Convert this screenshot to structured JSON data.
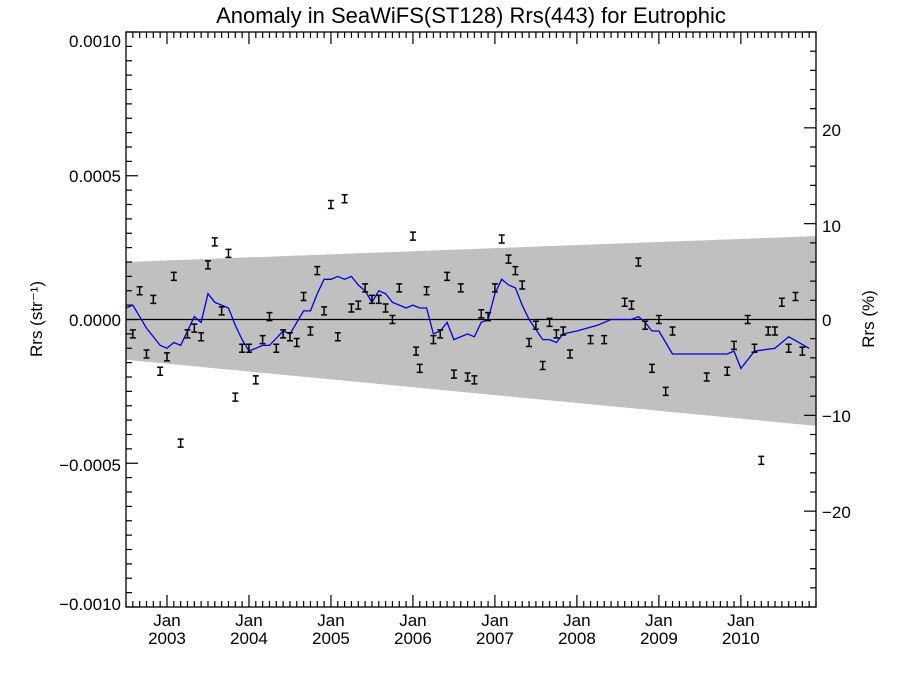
{
  "chart_data": {
    "type": "scatter",
    "title": "Anomaly in SeaWiFS(ST128) Rrs(443) for Eutrophic",
    "ylabel_left": "Rrs (str⁻¹)",
    "ylabel_right": "Rrs (%)",
    "xlabel": "",
    "xlim": [
      "2002-07-01",
      "2010-12-01"
    ],
    "ylim_left": [
      -0.001,
      0.001
    ],
    "ylim_right": [
      -30,
      30
    ],
    "left_ticks": [
      "0.0010",
      "0.0005",
      "0.0000",
      "−0.0005",
      "−0.0010"
    ],
    "right_ticks": [
      "20",
      "10",
      "0",
      "−10",
      "−20"
    ],
    "x_ticks": [
      {
        "month": "Jan",
        "year": "2003"
      },
      {
        "month": "Jan",
        "year": "2004"
      },
      {
        "month": "Jan",
        "year": "2005"
      },
      {
        "month": "Jan",
        "year": "2006"
      },
      {
        "month": "Jan",
        "year": "2007"
      },
      {
        "month": "Jan",
        "year": "2008"
      },
      {
        "month": "Jan",
        "year": "2009"
      },
      {
        "month": "Jan",
        "year": "2010"
      }
    ],
    "colors": {
      "band": "#c0c0c0",
      "line": "#0000dd",
      "points": "#000000",
      "zero_line": "#000000"
    },
    "uncertainty_band": {
      "x": [
        "2002-07-01",
        "2010-12-01"
      ],
      "upper": [
        0.0002,
        0.00029
      ],
      "lower": [
        -0.00014,
        -0.00037
      ]
    },
    "points": [
      {
        "x": "2002-08-01",
        "y": -5e-05
      },
      {
        "x": "2002-09-01",
        "y": 0.0001
      },
      {
        "x": "2002-10-01",
        "y": -0.00012
      },
      {
        "x": "2002-11-01",
        "y": 7e-05
      },
      {
        "x": "2002-12-01",
        "y": -0.00018
      },
      {
        "x": "2003-01-01",
        "y": -0.00013
      },
      {
        "x": "2003-02-01",
        "y": 0.00015
      },
      {
        "x": "2003-03-01",
        "y": -0.00043
      },
      {
        "x": "2003-04-01",
        "y": -5e-05
      },
      {
        "x": "2003-05-01",
        "y": -3e-05
      },
      {
        "x": "2003-06-01",
        "y": -6e-05
      },
      {
        "x": "2003-07-01",
        "y": 0.00019
      },
      {
        "x": "2003-08-01",
        "y": 0.00027
      },
      {
        "x": "2003-09-01",
        "y": 3e-05
      },
      {
        "x": "2003-10-01",
        "y": 0.00023
      },
      {
        "x": "2003-11-01",
        "y": -0.00027
      },
      {
        "x": "2003-12-01",
        "y": -0.0001
      },
      {
        "x": "2004-01-01",
        "y": -0.0001
      },
      {
        "x": "2004-02-01",
        "y": -0.00021
      },
      {
        "x": "2004-03-01",
        "y": -7e-05
      },
      {
        "x": "2004-04-01",
        "y": 1e-05
      },
      {
        "x": "2004-05-01",
        "y": -0.0001
      },
      {
        "x": "2004-06-01",
        "y": -5e-05
      },
      {
        "x": "2004-07-01",
        "y": -6e-05
      },
      {
        "x": "2004-08-01",
        "y": -8e-05
      },
      {
        "x": "2004-09-01",
        "y": 8e-05
      },
      {
        "x": "2004-10-01",
        "y": -4e-05
      },
      {
        "x": "2004-11-01",
        "y": 0.00017
      },
      {
        "x": "2004-12-01",
        "y": 3e-05
      },
      {
        "x": "2005-01-01",
        "y": 0.0004
      },
      {
        "x": "2005-02-01",
        "y": -6e-05
      },
      {
        "x": "2005-03-01",
        "y": 0.00042
      },
      {
        "x": "2005-04-01",
        "y": 4e-05
      },
      {
        "x": "2005-05-01",
        "y": 5e-05
      },
      {
        "x": "2005-06-01",
        "y": 0.00011
      },
      {
        "x": "2005-07-01",
        "y": 7e-05
      },
      {
        "x": "2005-08-01",
        "y": 7e-05
      },
      {
        "x": "2005-09-01",
        "y": 4e-05
      },
      {
        "x": "2005-10-01",
        "y": 0.0
      },
      {
        "x": "2005-11-01",
        "y": 0.00011
      },
      {
        "x": "2006-01-01",
        "y": 0.00029
      },
      {
        "x": "2006-01-15",
        "y": -0.00011
      },
      {
        "x": "2006-02-01",
        "y": -0.00017
      },
      {
        "x": "2006-03-01",
        "y": 0.0001
      },
      {
        "x": "2006-04-01",
        "y": -7e-05
      },
      {
        "x": "2006-05-01",
        "y": -5e-05
      },
      {
        "x": "2006-06-01",
        "y": 0.00015
      },
      {
        "x": "2006-07-01",
        "y": -0.00019
      },
      {
        "x": "2006-08-01",
        "y": 0.00011
      },
      {
        "x": "2006-09-01",
        "y": -0.0002
      },
      {
        "x": "2006-10-01",
        "y": -0.00021
      },
      {
        "x": "2006-11-01",
        "y": 2e-05
      },
      {
        "x": "2006-12-01",
        "y": 1e-05
      },
      {
        "x": "2007-01-01",
        "y": 0.00011
      },
      {
        "x": "2007-02-01",
        "y": 0.00028
      },
      {
        "x": "2007-03-01",
        "y": 0.00021
      },
      {
        "x": "2007-04-01",
        "y": 0.00017
      },
      {
        "x": "2007-05-01",
        "y": 0.00012
      },
      {
        "x": "2007-06-01",
        "y": -8e-05
      },
      {
        "x": "2007-07-01",
        "y": -2e-05
      },
      {
        "x": "2007-08-01",
        "y": -0.00016
      },
      {
        "x": "2007-09-01",
        "y": -1e-05
      },
      {
        "x": "2007-10-01",
        "y": -5e-05
      },
      {
        "x": "2007-11-01",
        "y": -4e-05
      },
      {
        "x": "2007-12-01",
        "y": -0.00012
      },
      {
        "x": "2008-03-01",
        "y": -7e-05
      },
      {
        "x": "2008-05-01",
        "y": -7e-05
      },
      {
        "x": "2008-08-01",
        "y": 6e-05
      },
      {
        "x": "2008-09-01",
        "y": 5e-05
      },
      {
        "x": "2008-10-01",
        "y": 0.0002
      },
      {
        "x": "2008-11-01",
        "y": -2e-05
      },
      {
        "x": "2008-12-01",
        "y": -0.00017
      },
      {
        "x": "2009-01-01",
        "y": 0.0
      },
      {
        "x": "2009-02-01",
        "y": -0.00025
      },
      {
        "x": "2009-03-01",
        "y": -4e-05
      },
      {
        "x": "2009-08-01",
        "y": -0.0002
      },
      {
        "x": "2009-11-01",
        "y": -0.00018
      },
      {
        "x": "2009-12-01",
        "y": -9e-05
      },
      {
        "x": "2010-02-01",
        "y": 0.0
      },
      {
        "x": "2010-03-01",
        "y": -0.0001
      },
      {
        "x": "2010-04-01",
        "y": -0.00049
      },
      {
        "x": "2010-05-01",
        "y": -4e-05
      },
      {
        "x": "2010-06-01",
        "y": -4e-05
      },
      {
        "x": "2010-07-01",
        "y": 6e-05
      },
      {
        "x": "2010-08-01",
        "y": -0.0001
      },
      {
        "x": "2010-09-01",
        "y": 8e-05
      },
      {
        "x": "2010-10-01",
        "y": -0.00011
      }
    ],
    "running_mean": [
      {
        "x": "2002-07-01",
        "y": 4e-05
      },
      {
        "x": "2002-08-01",
        "y": 5e-05
      },
      {
        "x": "2002-10-01",
        "y": -3e-05
      },
      {
        "x": "2002-12-01",
        "y": -9e-05
      },
      {
        "x": "2003-01-01",
        "y": -0.0001
      },
      {
        "x": "2003-02-01",
        "y": -8e-05
      },
      {
        "x": "2003-03-01",
        "y": -9e-05
      },
      {
        "x": "2003-05-01",
        "y": 1e-05
      },
      {
        "x": "2003-06-01",
        "y": -1e-05
      },
      {
        "x": "2003-07-01",
        "y": 9e-05
      },
      {
        "x": "2003-08-01",
        "y": 6e-05
      },
      {
        "x": "2003-10-01",
        "y": 4e-05
      },
      {
        "x": "2003-11-01",
        "y": -2e-05
      },
      {
        "x": "2003-12-01",
        "y": -7e-05
      },
      {
        "x": "2004-01-01",
        "y": -0.00011
      },
      {
        "x": "2004-02-01",
        "y": -0.0001
      },
      {
        "x": "2004-03-01",
        "y": -9e-05
      },
      {
        "x": "2004-04-01",
        "y": -9e-05
      },
      {
        "x": "2004-06-01",
        "y": -4e-05
      },
      {
        "x": "2004-07-01",
        "y": -5e-05
      },
      {
        "x": "2004-09-01",
        "y": 3e-05
      },
      {
        "x": "2004-10-01",
        "y": 3e-05
      },
      {
        "x": "2004-11-01",
        "y": 9e-05
      },
      {
        "x": "2004-12-01",
        "y": 0.00014
      },
      {
        "x": "2005-01-01",
        "y": 0.00014
      },
      {
        "x": "2005-02-01",
        "y": 0.00015
      },
      {
        "x": "2005-03-01",
        "y": 0.00014
      },
      {
        "x": "2005-04-01",
        "y": 0.00015
      },
      {
        "x": "2005-05-01",
        "y": 0.00012
      },
      {
        "x": "2005-06-01",
        "y": 0.0001
      },
      {
        "x": "2005-07-01",
        "y": 6e-05
      },
      {
        "x": "2005-08-01",
        "y": 0.0001
      },
      {
        "x": "2005-09-01",
        "y": 9e-05
      },
      {
        "x": "2005-10-01",
        "y": 6e-05
      },
      {
        "x": "2005-11-01",
        "y": 5e-05
      },
      {
        "x": "2005-12-01",
        "y": 4e-05
      },
      {
        "x": "2006-01-01",
        "y": 5e-05
      },
      {
        "x": "2006-02-01",
        "y": 4e-05
      },
      {
        "x": "2006-03-01",
        "y": 4e-05
      },
      {
        "x": "2006-04-01",
        "y": -5e-05
      },
      {
        "x": "2006-05-01",
        "y": -4e-05
      },
      {
        "x": "2006-06-01",
        "y": -1e-05
      },
      {
        "x": "2006-07-01",
        "y": -7e-05
      },
      {
        "x": "2006-09-01",
        "y": -5e-05
      },
      {
        "x": "2006-10-01",
        "y": -6e-05
      },
      {
        "x": "2006-11-01",
        "y": -1e-05
      },
      {
        "x": "2006-12-01",
        "y": 0.0
      },
      {
        "x": "2007-01-01",
        "y": 9e-05
      },
      {
        "x": "2007-02-01",
        "y": 0.00014
      },
      {
        "x": "2007-03-01",
        "y": 0.00012
      },
      {
        "x": "2007-04-01",
        "y": 0.00011
      },
      {
        "x": "2007-05-01",
        "y": 5e-05
      },
      {
        "x": "2007-06-01",
        "y": 0.0
      },
      {
        "x": "2007-08-01",
        "y": -7e-05
      },
      {
        "x": "2007-09-01",
        "y": -7e-05
      },
      {
        "x": "2007-10-01",
        "y": -8e-05
      },
      {
        "x": "2007-11-01",
        "y": -5e-05
      },
      {
        "x": "2008-01-01",
        "y": -4e-05
      },
      {
        "x": "2008-04-01",
        "y": -2e-05
      },
      {
        "x": "2008-06-01",
        "y": 0.0
      },
      {
        "x": "2008-09-01",
        "y": 0.0
      },
      {
        "x": "2008-10-01",
        "y": 1e-05
      },
      {
        "x": "2008-11-01",
        "y": -1e-05
      },
      {
        "x": "2008-12-01",
        "y": -4e-05
      },
      {
        "x": "2009-01-01",
        "y": -4e-05
      },
      {
        "x": "2009-03-01",
        "y": -0.00012
      },
      {
        "x": "2009-06-01",
        "y": -0.00012
      },
      {
        "x": "2009-09-01",
        "y": -0.00012
      },
      {
        "x": "2009-11-01",
        "y": -0.00012
      },
      {
        "x": "2009-12-01",
        "y": -0.00011
      },
      {
        "x": "2010-01-01",
        "y": -0.00017
      },
      {
        "x": "2010-03-01",
        "y": -0.00011
      },
      {
        "x": "2010-06-01",
        "y": -0.0001
      },
      {
        "x": "2010-08-01",
        "y": -6e-05
      },
      {
        "x": "2010-11-01",
        "y": -0.0001
      }
    ]
  }
}
